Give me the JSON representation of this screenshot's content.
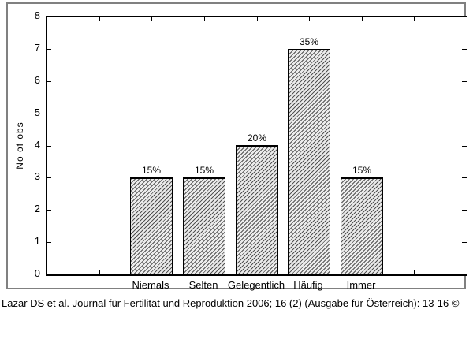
{
  "chart_data": {
    "type": "bar",
    "title": "",
    "categories": [
      "Niemals",
      "Selten",
      "Gelegentlich",
      "Häufig",
      "Immer"
    ],
    "values": [
      3,
      3,
      4,
      7,
      3
    ],
    "bar_labels": [
      "15%",
      "15%",
      "20%",
      "35%",
      "15%"
    ],
    "xlabel": "",
    "ylabel": "No of obs",
    "ylim": [
      0,
      8
    ],
    "ytick_step": 1,
    "ytick_labels": [
      "0",
      "1",
      "2",
      "3",
      "4",
      "5",
      "6",
      "7",
      "8"
    ],
    "grid": false,
    "legend": "none",
    "bar_style": "diagonal-hatch",
    "frame": "full-box-inward-ticks"
  },
  "caption": "Lazar DS et al. Journal für Fertilität und Reproduktion 2006; 16 (2) (Ausgabe für Österreich): 13-16 ©",
  "colors": {
    "background": "#ffffff",
    "frame_border": "#808080",
    "axis": "#000000",
    "text": "#000000",
    "hatch_line": "#444444",
    "hatch_background": "#ebebeb"
  }
}
